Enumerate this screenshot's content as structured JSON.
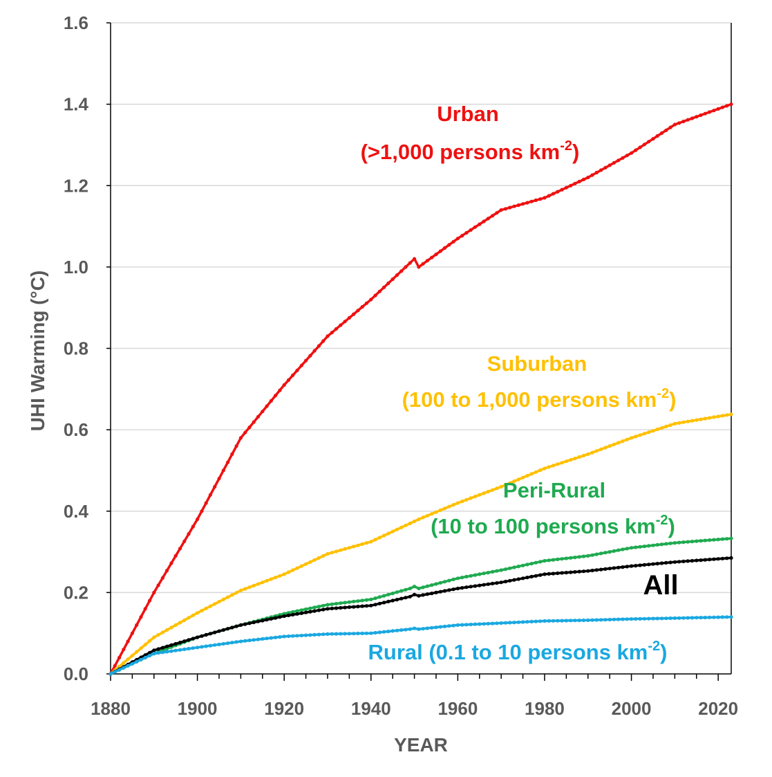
{
  "chart_data": {
    "type": "line",
    "xlabel": "YEAR",
    "ylabel": "UHI Warming (°C)",
    "xlim": [
      1880,
      2023
    ],
    "ylim": [
      0,
      1.6
    ],
    "xticks": [
      "1880",
      "1900",
      "1920",
      "1940",
      "1960",
      "1980",
      "2000",
      "2020"
    ],
    "yticks": [
      "0.0",
      "0.2",
      "0.4",
      "0.6",
      "0.8",
      "1.0",
      "1.2",
      "1.4",
      "1.6"
    ],
    "grid": "horizontal",
    "x": [
      1880,
      1890,
      1900,
      1910,
      1920,
      1930,
      1940,
      1949,
      1950,
      1951,
      1960,
      1970,
      1980,
      1990,
      2000,
      2010,
      2023
    ],
    "series": [
      {
        "name": "Urban",
        "subtitle": "(>1,000 persons km",
        "superscript": "-2",
        "subtitle_end": ")",
        "color": "#ee1111",
        "values": [
          0.0,
          0.2,
          0.38,
          0.58,
          0.71,
          0.83,
          0.92,
          1.01,
          1.02,
          1.0,
          1.07,
          1.14,
          1.17,
          1.22,
          1.28,
          1.35,
          1.4
        ]
      },
      {
        "name": "Suburban",
        "subtitle": "(100 to 1,000 persons km",
        "superscript": "-2",
        "subtitle_end": ")",
        "color": "#ffc000",
        "values": [
          0.0,
          0.09,
          0.15,
          0.205,
          0.245,
          0.295,
          0.325,
          0.37,
          0.375,
          0.38,
          0.42,
          0.46,
          0.505,
          0.54,
          0.58,
          0.615,
          0.638
        ]
      },
      {
        "name": "Peri-Rural",
        "subtitle": "(10 to 100 persons km",
        "superscript": "-2",
        "subtitle_end": ")",
        "color": "#1faa50",
        "values": [
          0.0,
          0.05,
          0.09,
          0.12,
          0.148,
          0.17,
          0.183,
          0.21,
          0.215,
          0.21,
          0.235,
          0.255,
          0.278,
          0.29,
          0.31,
          0.322,
          0.333
        ]
      },
      {
        "name": "All",
        "color": "#000000",
        "values": [
          0.0,
          0.058,
          0.09,
          0.12,
          0.142,
          0.16,
          0.168,
          0.19,
          0.195,
          0.192,
          0.21,
          0.225,
          0.245,
          0.253,
          0.265,
          0.275,
          0.285
        ]
      },
      {
        "name": "Rural (0.1 to 10 persons km",
        "superscript": "-2",
        "subtitle_end": ")",
        "color": "#1aa8e0",
        "values": [
          0.0,
          0.05,
          0.065,
          0.08,
          0.092,
          0.098,
          0.1,
          0.11,
          0.112,
          0.11,
          0.12,
          0.125,
          0.13,
          0.132,
          0.135,
          0.137,
          0.14
        ]
      }
    ]
  }
}
